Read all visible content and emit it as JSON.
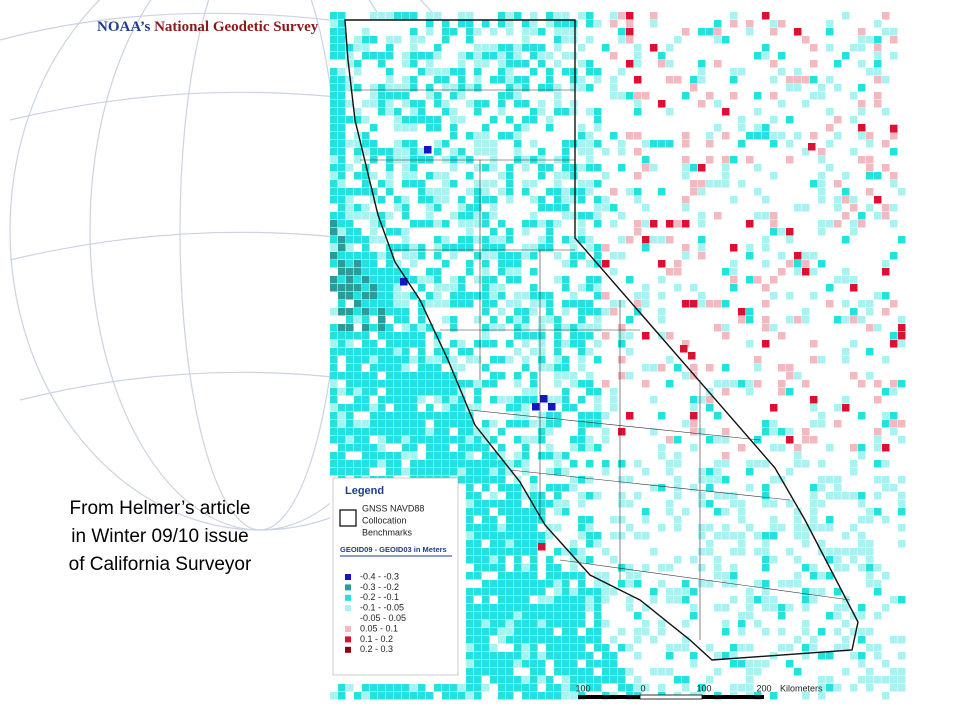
{
  "header": {
    "agency": "NOAA’s",
    "office": "National Geodetic Survey"
  },
  "caption": [
    "From Helmer’s article",
    "in Winter 09/10 issue",
    "of California Surveyor"
  ],
  "legend": {
    "title": "Legend",
    "benchmark": [
      "GNSS NAVD88",
      "Collocation",
      "Benchmarks"
    ],
    "subtitle": "GEOID09 - GEOID03 in Meters",
    "items": [
      {
        "label": "-0.4 - -0.3",
        "color": "#1414c8"
      },
      {
        "label": "-0.3 - -0.2",
        "color": "#2a9a9a"
      },
      {
        "label": "-0.2 - -0.1",
        "color": "#24e0e0"
      },
      {
        "label": "-0.1 - -0.05",
        "color": "#a8f2f2"
      },
      {
        "label": "-0.05 - 0.05",
        "color": "#ffffff"
      },
      {
        "label": "0.05 - 0.1",
        "color": "#f4b8c0"
      },
      {
        "label": "0.1 - 0.2",
        "color": "#dc1030"
      },
      {
        "label": "0.2 - 0.3",
        "color": "#8c0010"
      }
    ]
  },
  "scale": {
    "labels": [
      "100",
      "0",
      "100",
      "200"
    ],
    "unit": "Kilometers"
  }
}
